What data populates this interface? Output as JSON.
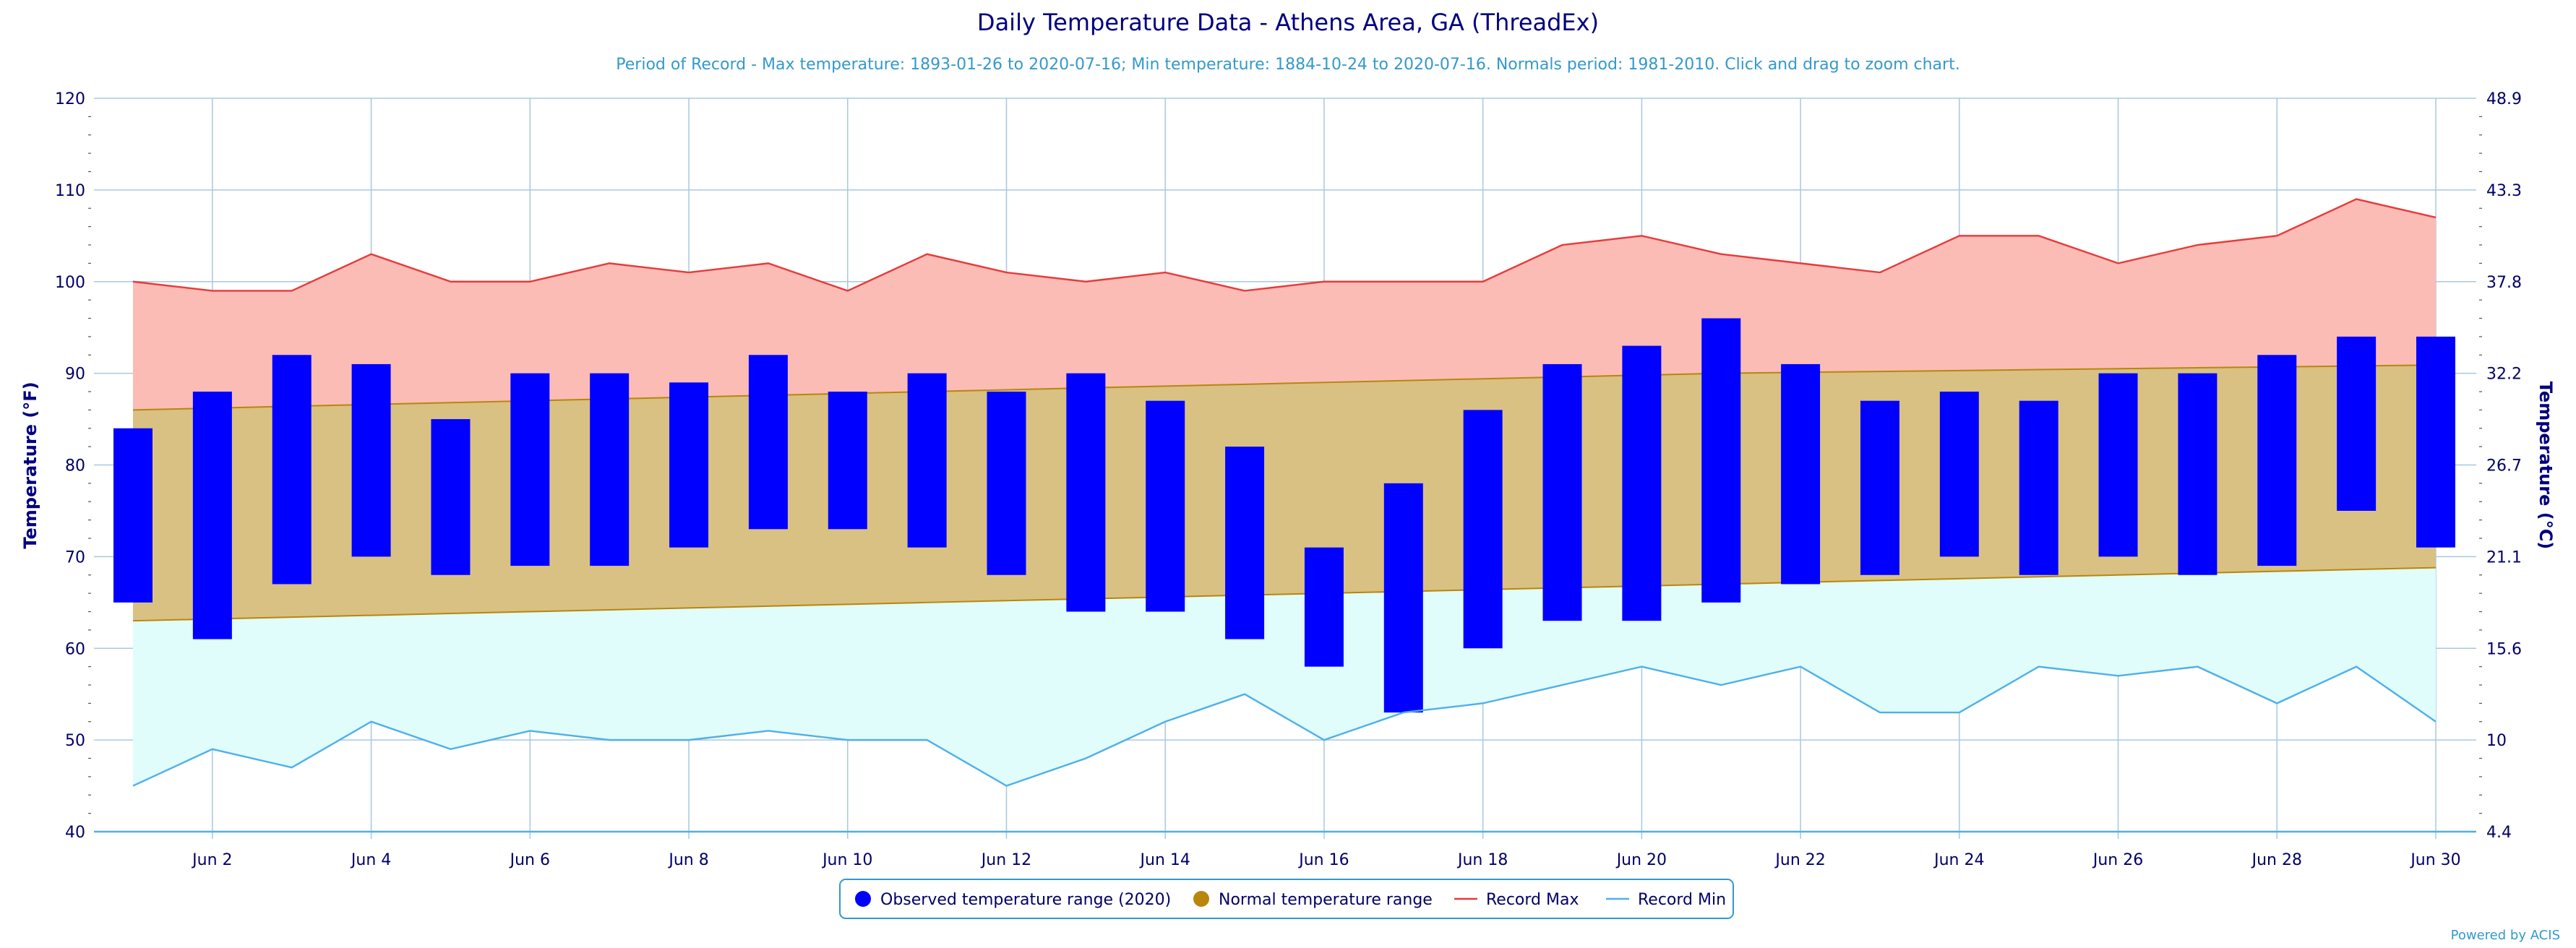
{
  "chart_data": {
    "type": "bar",
    "title": "Daily Temperature Data - Athens Area, GA (ThreadEx)",
    "subtitle": "Period of Record - Max temperature: 1893-01-26 to 2020-07-16; Min temperature: 1884-10-24 to 2020-07-16. Normals period: 1981-2010. Click and drag to zoom chart.",
    "ylabel": "Temperature (°F)",
    "ylabel_right": "Temperature (°C)",
    "ylim": [
      40,
      120
    ],
    "yticks": [
      "40",
      "50",
      "60",
      "70",
      "80",
      "90",
      "100",
      "110",
      "120"
    ],
    "yticks_right": [
      "4.4",
      "10",
      "15.6",
      "21.1",
      "26.7",
      "32.2",
      "37.8",
      "43.3",
      "48.9"
    ],
    "days": [
      1,
      2,
      3,
      4,
      5,
      6,
      7,
      8,
      9,
      10,
      11,
      12,
      13,
      14,
      15,
      16,
      17,
      18,
      19,
      20,
      21,
      22,
      23,
      24,
      25,
      26,
      27,
      28,
      29,
      30
    ],
    "xtick_labels": [
      "Jun 2",
      "Jun 4",
      "Jun 6",
      "Jun 8",
      "Jun 10",
      "Jun 12",
      "Jun 14",
      "Jun 16",
      "Jun 18",
      "Jun 20",
      "Jun 22",
      "Jun 24",
      "Jun 26",
      "Jun 28",
      "Jun 30"
    ],
    "grid": true,
    "legend_position": "bottom-center",
    "series": [
      {
        "name": "Observed temperature range (2020)",
        "color": "#0000ff",
        "low": [
          65,
          61,
          67,
          70,
          68,
          69,
          69,
          71,
          73,
          73,
          71,
          68,
          64,
          64,
          61,
          58,
          53,
          60,
          63,
          63,
          65,
          67,
          68,
          70,
          68,
          70,
          68,
          69,
          75,
          71
        ],
        "high": [
          84,
          88,
          92,
          91,
          85,
          90,
          90,
          89,
          92,
          88,
          90,
          88,
          90,
          87,
          82,
          71,
          78,
          86,
          91,
          93,
          96,
          91,
          87,
          88,
          87,
          90,
          90,
          92,
          94,
          94
        ]
      },
      {
        "name": "Normal temperature range",
        "color": "#b8860b",
        "low": [
          63,
          63.2,
          63.4,
          63.6,
          63.8,
          64,
          64.2,
          64.4,
          64.6,
          64.8,
          65,
          65.2,
          65.4,
          65.6,
          65.8,
          66,
          66.2,
          66.4,
          66.6,
          66.8,
          67,
          67.2,
          67.4,
          67.6,
          67.8,
          68,
          68.2,
          68.4,
          68.6,
          68.8
        ],
        "high": [
          86,
          86.2,
          86.4,
          86.6,
          86.8,
          87,
          87.2,
          87.4,
          87.6,
          87.8,
          88,
          88.2,
          88.4,
          88.6,
          88.8,
          89,
          89.2,
          89.4,
          89.6,
          89.8,
          90,
          90.1,
          90.2,
          90.3,
          90.4,
          90.5,
          90.6,
          90.7,
          90.8,
          90.9
        ]
      },
      {
        "name": "Record Max",
        "color": "#e83a3a",
        "values": [
          100,
          99,
          99,
          103,
          100,
          100,
          102,
          101,
          102,
          99,
          103,
          101,
          100,
          101,
          99,
          100,
          100,
          100,
          104,
          105,
          103,
          102,
          101,
          105,
          105,
          102,
          104,
          105,
          109,
          107
        ]
      },
      {
        "name": "Record Min",
        "color": "#4fb0e8",
        "values": [
          45,
          49,
          47,
          52,
          49,
          51,
          50,
          50,
          51,
          50,
          50,
          45,
          48,
          52,
          55,
          50,
          53,
          54,
          56,
          58,
          56,
          58,
          53,
          53,
          58,
          57,
          58,
          54,
          58,
          52
        ]
      }
    ]
  },
  "credit": "Powered by ACIS"
}
